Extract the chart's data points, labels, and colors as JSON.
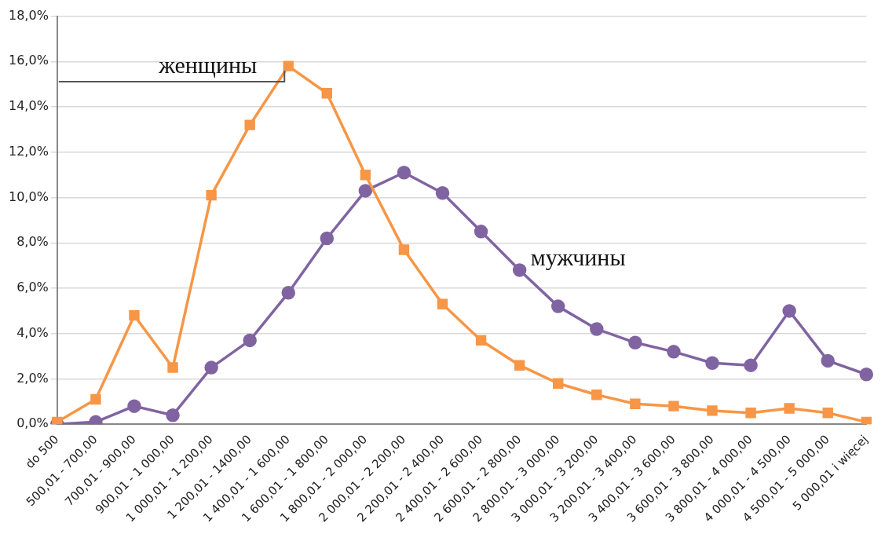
{
  "chart_data": {
    "type": "line",
    "categories": [
      "do 500",
      "500,01 - 700,00",
      "700,01 - 900,00",
      "900,01 - 1 000,00",
      "1 000,01 - 1 200,00",
      "1 200,01 - 1400,00",
      "1 400,01 - 1 600,00",
      "1 600,01 - 1 800,00",
      "1 800,01 - 2 000,00",
      "2 000,01 - 2 200,00",
      "2 200,01 - 2 400,00",
      "2 400,01 - 2 600,00",
      "2 600,01 - 2 800,00",
      "2 800,01 - 3 000,00",
      "3 000,01 - 3 200,00",
      "3 200,01 - 3 400,00",
      "3 400,01 - 3 600,00",
      "3 600,01 - 3 800,00",
      "3 800,01 - 4 000,00",
      "4 000,01 - 4 500,00",
      "4 500,01 - 5 000,00",
      "5 000,01 i więcej"
    ],
    "series": [
      {
        "name": "женщины",
        "color": "#f79646",
        "marker": "square",
        "values": [
          0.1,
          1.1,
          4.8,
          2.5,
          10.1,
          13.2,
          15.8,
          14.6,
          11.0,
          7.7,
          5.3,
          3.7,
          2.6,
          1.8,
          1.3,
          0.9,
          0.8,
          0.6,
          0.5,
          0.7,
          0.5,
          0.1
        ]
      },
      {
        "name": "мужчины",
        "color": "#8064a2",
        "marker": "circle",
        "values": [
          0.0,
          0.1,
          0.8,
          0.4,
          2.5,
          3.7,
          5.8,
          8.2,
          10.3,
          11.1,
          10.2,
          8.5,
          6.8,
          5.2,
          4.2,
          3.6,
          3.2,
          2.7,
          2.6,
          5.0,
          2.8,
          2.2
        ]
      }
    ],
    "ylim": [
      0,
      18
    ],
    "yticks": [
      {
        "value": 0,
        "label": "0,0%"
      },
      {
        "value": 2,
        "label": "2,0%"
      },
      {
        "value": 4,
        "label": "4,0%"
      },
      {
        "value": 6,
        "label": "6,0%"
      },
      {
        "value": 8,
        "label": "8,0%"
      },
      {
        "value": 10,
        "label": "10,0%"
      },
      {
        "value": 12,
        "label": "12,0%"
      },
      {
        "value": 14,
        "label": "14,0%"
      },
      {
        "value": 16,
        "label": "16,0%"
      },
      {
        "value": 18,
        "label": "18,0%"
      }
    ],
    "grid": "y",
    "legend": false,
    "line_style": "solid"
  }
}
